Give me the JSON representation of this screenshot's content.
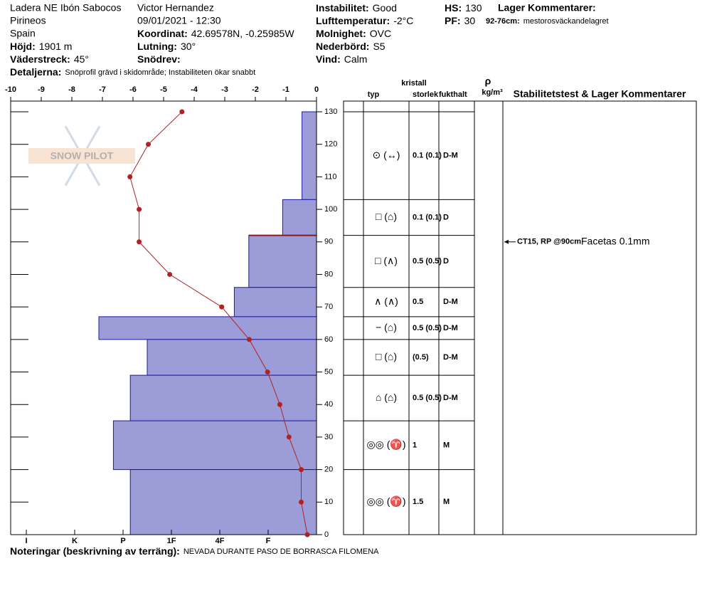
{
  "header": {
    "location": "Ladera NE Ibón Sabocos",
    "range": "Pirineos",
    "country": "Spain",
    "elevation": {
      "label": "Höjd:",
      "value": "1901 m"
    },
    "aspect": {
      "label": "Väderstreck:",
      "value": "45°"
    },
    "details": {
      "label": "Detaljerna:",
      "value": "Snöprofil grävd i skidområde;  Instabiliteten ökar snabbt"
    },
    "observer": "Victor Hernandez",
    "datetime": "09/01/2021 - 12:30",
    "coordinates": {
      "label": "Koordinat:",
      "value": "42.69578N, -0.25985W"
    },
    "slope": {
      "label": "Lutning:",
      "value": "30°"
    },
    "wind_loading": {
      "label": "Snödrev:",
      "value": ""
    },
    "stability": {
      "label": "Instabilitet:",
      "value": "Good"
    },
    "air_temp": {
      "label": "Lufttemperatur:",
      "value": "-2°C"
    },
    "sky": {
      "label": "Molnighet:",
      "value": "OVC"
    },
    "precip": {
      "label": "Nederbörd:",
      "value": "S5"
    },
    "wind": {
      "label": "Vind:",
      "value": "Calm"
    },
    "hs": {
      "label": "HS:",
      "value": 130
    },
    "pf": {
      "label": "PF:",
      "value": 30
    },
    "layer_comments_title": "Lager Kommentarer:",
    "layer_comment": {
      "label": "92-76cm:",
      "value": "mestorosväckandelagret"
    }
  },
  "watermark": "SNOW PILOT",
  "chart_data": {
    "type": "snow-profile",
    "temperature": {
      "xlim": [
        -10,
        0
      ],
      "xticks": [
        -10,
        -9,
        -8,
        -7,
        -6,
        -5,
        -4,
        -3,
        -2,
        -1,
        0
      ],
      "heights": [
        130,
        120,
        110,
        100,
        90,
        80,
        70,
        60,
        50,
        40,
        30,
        20,
        10,
        0
      ],
      "values": [
        -4.4,
        -5.5,
        -6.1,
        -5.8,
        -5.8,
        -4.8,
        -3.1,
        -2.2,
        -1.6,
        -1.2,
        -0.9,
        -0.5,
        -0.5,
        -0.3
      ],
      "color": "#b22222"
    },
    "ylim": [
      0,
      130
    ],
    "yticks": [
      0,
      10,
      20,
      30,
      40,
      50,
      60,
      70,
      80,
      90,
      100,
      110,
      120,
      130
    ],
    "hardness": {
      "xlim": [
        0,
        6
      ],
      "xticks": [
        {
          "value": 6,
          "label": "I"
        },
        {
          "value": 5,
          "label": "K"
        },
        {
          "value": 4,
          "label": "P"
        },
        {
          "value": 3,
          "label": "1F"
        },
        {
          "value": 2,
          "label": "4F"
        },
        {
          "value": 1,
          "label": "F"
        }
      ],
      "color": "#9c9cd8"
    },
    "columns": {
      "crystal": "kristall",
      "type": "typ",
      "size": "storlek",
      "moisture": "fukthalt",
      "density": "ρ",
      "density_unit": "kg/m³",
      "comments": "Stabilitetstest & Lager Kommentarer"
    },
    "layers": [
      {
        "top": 130,
        "bottom": 103,
        "hardness": 0.3,
        "type": "⊙ (↔)",
        "size": "0.1 (0.1)",
        "moisture": "D-M"
      },
      {
        "top": 103,
        "bottom": 92,
        "hardness": 0.7,
        "type": "□ (⌂)",
        "size": "0.1 (0.1)",
        "moisture": "D"
      },
      {
        "top": 92,
        "bottom": 76,
        "hardness": 1.4,
        "type": "□ (∧)",
        "size": "0.5 (0.5)",
        "moisture": "D"
      },
      {
        "top": 76,
        "bottom": 67,
        "hardness": 1.7,
        "type": "∧ (∧)",
        "size": "0.5",
        "moisture": "D-M"
      },
      {
        "top": 67,
        "bottom": 60,
        "hardness": 4.5,
        "type": "− (⌂)",
        "size": "0.5 (0.5)",
        "moisture": "D-M"
      },
      {
        "top": 60,
        "bottom": 49,
        "hardness": 3.5,
        "type": "□ (⌂)",
        "size": "(0.5)",
        "moisture": "D-M"
      },
      {
        "top": 49,
        "bottom": 35,
        "hardness": 3.85,
        "type": "⌂ (⌂)",
        "size": "0.5 (0.5)",
        "moisture": "D-M"
      },
      {
        "top": 35,
        "bottom": 20,
        "hardness": 4.2,
        "type": "◎◎ (♈)",
        "size": "1",
        "moisture": "M"
      },
      {
        "top": 20,
        "bottom": 0,
        "hardness": 3.85,
        "type": "◎◎ (♈)",
        "size": "1.5",
        "moisture": "M"
      }
    ],
    "stability_test": {
      "height": 90,
      "test": "CT15, RP @90cm",
      "comment": "Facetas 0.1mm",
      "color": "#8b1a1a"
    }
  },
  "notes": {
    "label": "Noteringar (beskrivning av terräng):",
    "value": "NEVADA DURANTE PASO DE BORRASCA FILOMENA"
  }
}
